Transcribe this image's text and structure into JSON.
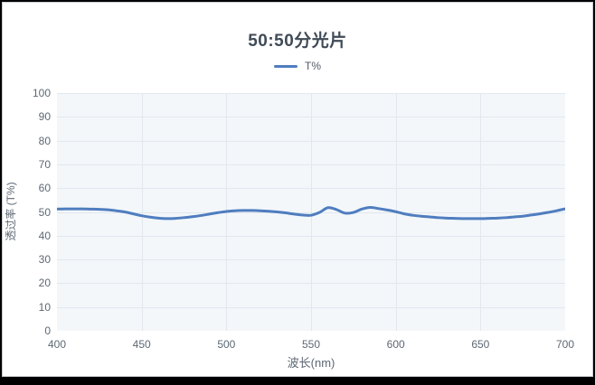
{
  "frame": {
    "outer_border_color": "#000000",
    "inner_border_color": "#c9cdd1",
    "background": "#ffffff"
  },
  "legend": {
    "marker": "line-marker",
    "label": "T%"
  },
  "chart_data": {
    "type": "line",
    "title": "50:50分光片",
    "xlabel": "波长(nm)",
    "ylabel": "透过率 (T%)",
    "xlim": [
      400,
      700
    ],
    "ylim": [
      0,
      100
    ],
    "x_ticks": [
      400,
      450,
      500,
      550,
      600,
      650,
      700
    ],
    "y_ticks": [
      0,
      10,
      20,
      30,
      40,
      50,
      60,
      70,
      80,
      90,
      100
    ],
    "grid": true,
    "legend_position": "top-center",
    "plot_bg": "#f3f7fa",
    "grid_color": "#e2e8ee",
    "axis_line_color": "#d3dae1",
    "title_color": "#404b56",
    "tick_color": "#5d6874",
    "legend_text_color": "#515b66",
    "series": [
      {
        "name": "T%",
        "color": "#4f7dbf",
        "x": [
          400,
          405,
          410,
          415,
          420,
          425,
          430,
          435,
          440,
          445,
          450,
          455,
          460,
          465,
          470,
          475,
          480,
          485,
          490,
          495,
          500,
          505,
          510,
          515,
          520,
          525,
          530,
          535,
          540,
          545,
          550,
          555,
          560,
          565,
          570,
          575,
          580,
          585,
          590,
          595,
          600,
          605,
          610,
          615,
          620,
          625,
          630,
          635,
          640,
          645,
          650,
          655,
          660,
          665,
          670,
          675,
          680,
          685,
          690,
          695,
          700
        ],
        "values": [
          51.2,
          51.3,
          51.3,
          51.3,
          51.2,
          51.1,
          50.9,
          50.5,
          50.0,
          49.2,
          48.4,
          47.8,
          47.4,
          47.2,
          47.3,
          47.6,
          48.0,
          48.5,
          49.1,
          49.7,
          50.2,
          50.5,
          50.6,
          50.6,
          50.5,
          50.3,
          50.0,
          49.6,
          49.1,
          48.7,
          48.6,
          49.8,
          51.8,
          51.0,
          49.5,
          49.8,
          51.2,
          51.9,
          51.4,
          50.8,
          50.1,
          49.2,
          48.6,
          48.2,
          47.9,
          47.6,
          47.4,
          47.3,
          47.2,
          47.2,
          47.2,
          47.3,
          47.4,
          47.6,
          47.9,
          48.2,
          48.7,
          49.2,
          49.8,
          50.5,
          51.3
        ]
      }
    ]
  }
}
